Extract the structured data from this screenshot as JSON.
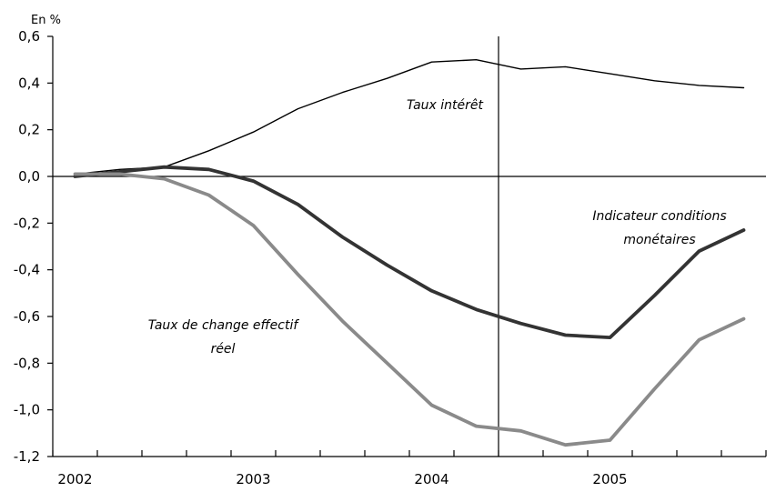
{
  "chart_data": {
    "type": "line",
    "title": "",
    "unit_label": "En %",
    "xlabel": "",
    "ylabel": "",
    "ylim": [
      -1.2,
      0.6
    ],
    "y_ticks": [
      0.6,
      0.4,
      0.2,
      0.0,
      -0.2,
      -0.4,
      -0.6,
      -0.8,
      -1.0,
      -1.2
    ],
    "y_tick_labels": [
      "0,6",
      "0,4",
      "0,2",
      "0,0",
      "-0,2",
      "-0,4",
      "-0,6",
      "-0,8",
      "-1,0",
      "-1,2"
    ],
    "x_tick_labels": [
      "2002",
      "2003",
      "2004",
      "2005"
    ],
    "x_tick_label_quarters": [
      0,
      4,
      8,
      12
    ],
    "quarter_count": 16,
    "forecast_separator_quarter": 10,
    "zero_line": true,
    "grid": false,
    "legend": "none",
    "series": [
      {
        "name": "Taux intérêt",
        "color": "#000000",
        "stroke": "thin",
        "values": [
          0.01,
          0.03,
          0.04,
          0.11,
          0.19,
          0.29,
          0.36,
          0.42,
          0.49,
          0.5,
          0.46,
          0.47,
          0.44,
          0.41,
          0.39,
          0.38
        ]
      },
      {
        "name": "Indicateur conditions monétaires",
        "color": "#333333",
        "stroke": "thick",
        "values": [
          0.0,
          0.02,
          0.04,
          0.03,
          -0.02,
          -0.12,
          -0.26,
          -0.38,
          -0.49,
          -0.57,
          -0.63,
          -0.68,
          -0.69,
          -0.51,
          -0.32,
          -0.23
        ]
      },
      {
        "name": "Taux de change effectif réel",
        "color": "#8a8a8a",
        "stroke": "thick",
        "values": [
          0.01,
          0.01,
          -0.01,
          -0.08,
          -0.21,
          -0.42,
          -0.62,
          -0.8,
          -0.98,
          -1.07,
          -1.09,
          -1.15,
          -1.13,
          -0.91,
          -0.7,
          -0.61
        ]
      }
    ],
    "annotations": [
      {
        "id": "taux-interet",
        "lines": [
          "Taux intérêt"
        ]
      },
      {
        "id": "indicateur",
        "lines": [
          "Indicateur conditions",
          "monétaires"
        ]
      },
      {
        "id": "change",
        "lines": [
          "Taux de change effectif",
          "réel"
        ]
      }
    ]
  }
}
